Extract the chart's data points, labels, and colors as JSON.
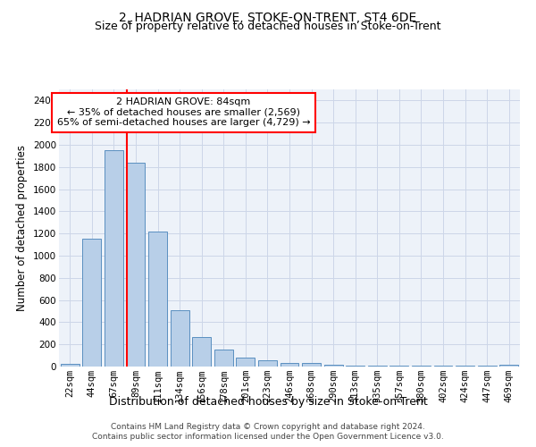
{
  "title": "2, HADRIAN GROVE, STOKE-ON-TRENT, ST4 6DE",
  "subtitle": "Size of property relative to detached houses in Stoke-on-Trent",
  "xlabel": "Distribution of detached houses by size in Stoke-on-Trent",
  "ylabel": "Number of detached properties",
  "categories": [
    "22sqm",
    "44sqm",
    "67sqm",
    "89sqm",
    "111sqm",
    "134sqm",
    "156sqm",
    "178sqm",
    "201sqm",
    "223sqm",
    "246sqm",
    "268sqm",
    "290sqm",
    "313sqm",
    "335sqm",
    "357sqm",
    "380sqm",
    "402sqm",
    "424sqm",
    "447sqm",
    "469sqm"
  ],
  "values": [
    25,
    1155,
    1950,
    1840,
    1220,
    510,
    265,
    155,
    80,
    55,
    35,
    35,
    15,
    10,
    10,
    10,
    10,
    5,
    5,
    5,
    15
  ],
  "bar_color": "#b8cfe8",
  "bar_edge_color": "#5a8fc0",
  "vline_position": 2.6,
  "vline_color": "red",
  "annotation_text": "2 HADRIAN GROVE: 84sqm\n← 35% of detached houses are smaller (2,569)\n65% of semi-detached houses are larger (4,729) →",
  "annotation_box_color": "white",
  "annotation_box_edge": "red",
  "ylim": [
    0,
    2500
  ],
  "yticks": [
    0,
    200,
    400,
    600,
    800,
    1000,
    1200,
    1400,
    1600,
    1800,
    2000,
    2200,
    2400
  ],
  "grid_color": "#ccd6e8",
  "background_color": "#edf2f9",
  "footer1": "Contains HM Land Registry data © Crown copyright and database right 2024.",
  "footer2": "Contains public sector information licensed under the Open Government Licence v3.0.",
  "title_fontsize": 10,
  "subtitle_fontsize": 9,
  "xlabel_fontsize": 9,
  "ylabel_fontsize": 8.5,
  "tick_fontsize": 7.5,
  "annotation_fontsize": 8,
  "footer_fontsize": 6.5
}
